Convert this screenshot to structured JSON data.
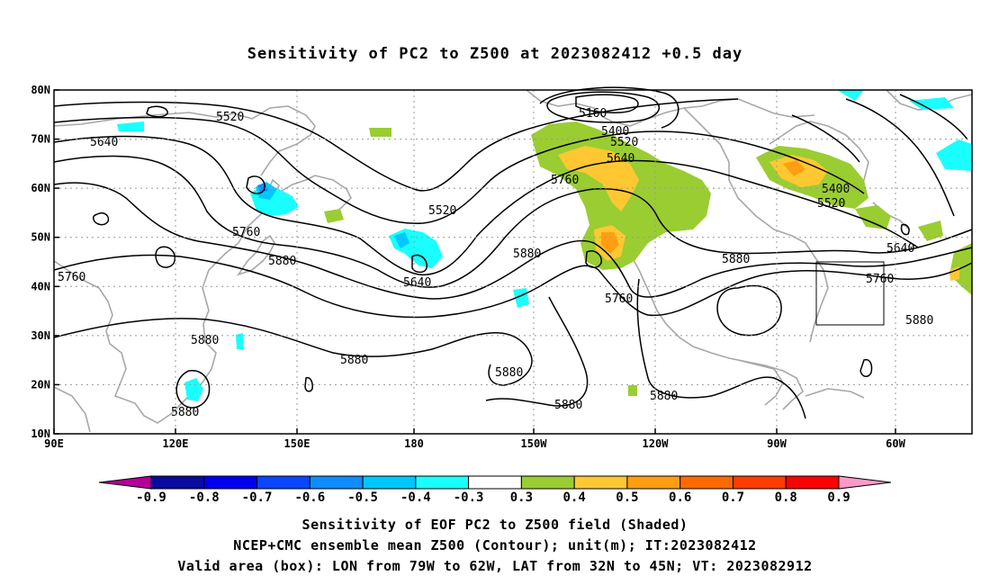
{
  "title": "Sensitivity of PC2 to Z500 at 2023082412 +0.5 day",
  "map": {
    "lat_labels": [
      "80N",
      "70N",
      "60N",
      "50N",
      "40N",
      "30N",
      "20N",
      "10N"
    ],
    "lon_labels": [
      "90E",
      "120E",
      "150E",
      "180",
      "150W",
      "120W",
      "90W",
      "60W"
    ],
    "contour_levels": [
      "5160",
      "5400",
      "5520",
      "5640",
      "5760",
      "5880"
    ],
    "contour_labels": [
      "5520",
      "5640",
      "5520",
      "5760",
      "5880",
      "5640",
      "5760",
      "5160",
      "5400",
      "5520",
      "5640",
      "5760",
      "5880",
      "5760",
      "5880",
      "5400",
      "5520",
      "5640",
      "5760",
      "5880",
      "5880",
      "5880",
      "5880",
      "5880",
      "5880",
      "5880"
    ],
    "valid_box": {
      "lon_range": [
        "79W",
        "62W"
      ],
      "lat_range": [
        "32N",
        "45N"
      ]
    },
    "land_color": "#a8a8a8",
    "contour_color": "#000000"
  },
  "colorbar": {
    "labels": [
      "-0.9",
      "-0.8",
      "-0.7",
      "-0.6",
      "-0.5",
      "-0.4",
      "-0.3",
      "0.3",
      "0.4",
      "0.5",
      "0.6",
      "0.7",
      "0.8",
      "0.9"
    ],
    "colors": [
      "#b4009a",
      "#0a0a9e",
      "#0000ee",
      "#0a46ff",
      "#0f8cff",
      "#00c8ff",
      "#19ffff",
      "#ffffff",
      "#9acd32",
      "#ffc832",
      "#ff9e10",
      "#ff6a00",
      "#ff3c00",
      "#ff0000",
      "#ff9ac8"
    ]
  },
  "captions": [
    "Sensitivity of EOF PC2 to Z500 field (Shaded)",
    "NCEP+CMC ensemble mean Z500 (Contour); unit(m); IT:2023082412",
    "Valid area (box): LON from 79W to 62W, LAT from 32N to 45N; VT: 2023082912"
  ]
}
